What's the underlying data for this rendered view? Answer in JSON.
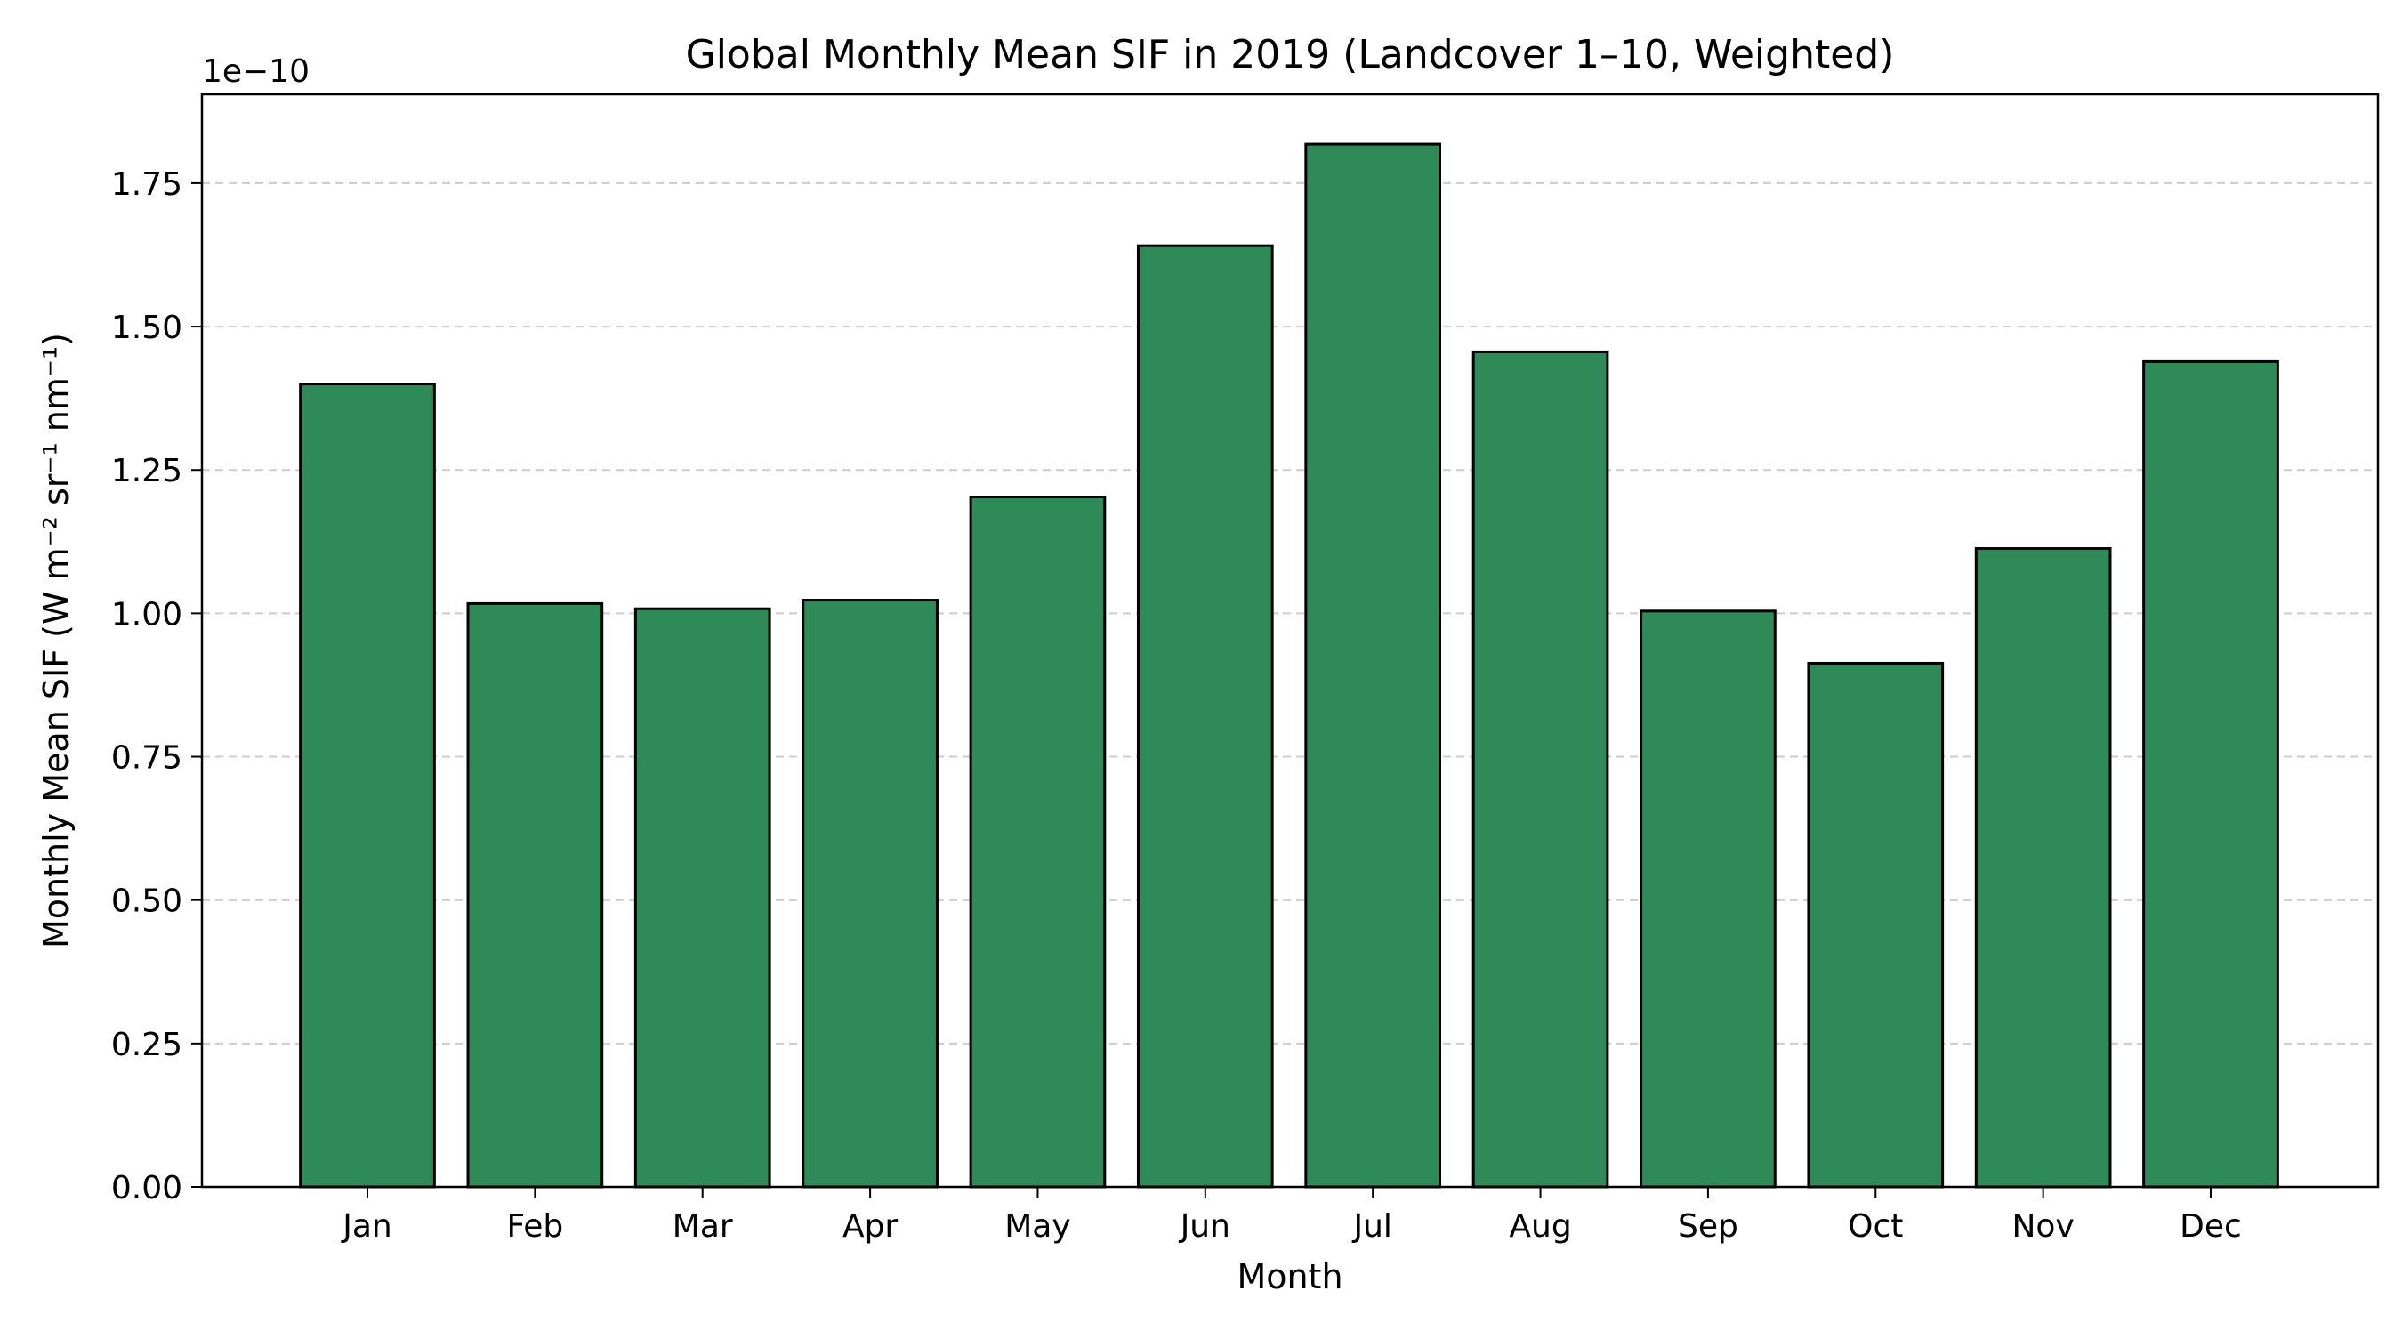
{
  "chart_data": {
    "type": "bar",
    "title": "Global Monthly Mean SIF in 2019 (Landcover 1–10, Weighted)",
    "xlabel": "Month",
    "ylabel": "Monthly Mean SIF (W m⁻² sr⁻¹ nm⁻¹)",
    "offset_label": "1e−10",
    "categories": [
      "Jan",
      "Feb",
      "Mar",
      "Apr",
      "May",
      "Jun",
      "Jul",
      "Aug",
      "Sep",
      "Oct",
      "Nov",
      "Dec"
    ],
    "values": [
      1.4,
      1.017,
      1.008,
      1.023,
      1.203,
      1.641,
      1.818,
      1.456,
      1.004,
      0.913,
      1.113,
      1.439
    ],
    "value_multiplier": 1e-10,
    "ylim": [
      0,
      1.905
    ],
    "yticks": [
      "0.00",
      "0.25",
      "0.50",
      "0.75",
      "1.00",
      "1.25",
      "1.50",
      "1.75"
    ],
    "grid": "y-dashed",
    "bar_color": "#2e8b57",
    "edge_color": "#000000",
    "grid_color": "#cccccc"
  }
}
